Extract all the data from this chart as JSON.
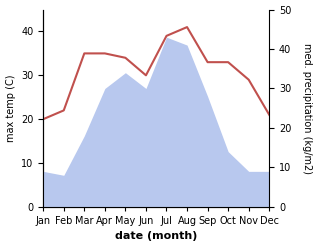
{
  "months": [
    "Jan",
    "Feb",
    "Mar",
    "Apr",
    "May",
    "Jun",
    "Jul",
    "Aug",
    "Sep",
    "Oct",
    "Nov",
    "Dec"
  ],
  "temperature": [
    20,
    22,
    35,
    35,
    34,
    30,
    39,
    41,
    33,
    33,
    29,
    21
  ],
  "precipitation": [
    9,
    8,
    18,
    30,
    34,
    30,
    43,
    41,
    28,
    14,
    9,
    9
  ],
  "temp_color": "#c0504d",
  "precip_color": "#b8c8ee",
  "ylabel_left": "max temp (C)",
  "ylabel_right": "med. precipitation (kg/m2)",
  "xlabel": "date (month)",
  "ylim_left": [
    0,
    45
  ],
  "ylim_right": [
    0,
    50
  ],
  "yticks_left": [
    0,
    10,
    20,
    30,
    40
  ],
  "yticks_right": [
    0,
    10,
    20,
    30,
    40,
    50
  ],
  "bg_color": "#ffffff",
  "tick_fontsize": 7,
  "label_fontsize": 7,
  "xlabel_fontsize": 8
}
